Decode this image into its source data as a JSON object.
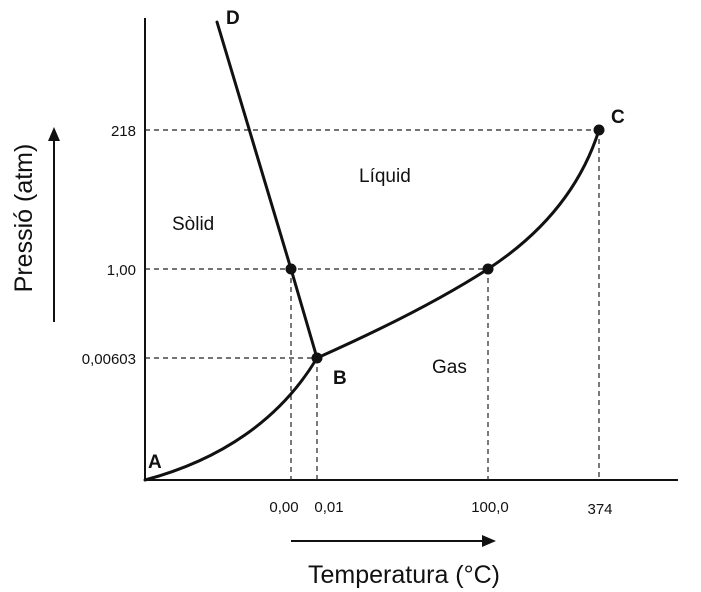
{
  "chart_data": {
    "type": "phase_diagram",
    "y_axis": {
      "label": "Pressió (atm)",
      "ticks": [
        "218",
        "1,00",
        "0,00603"
      ]
    },
    "x_axis": {
      "label": "Temperatura (°C)",
      "ticks": [
        "0,00",
        "0,01",
        "100,0",
        "374"
      ]
    },
    "points": [
      {
        "label": "A",
        "temperature": null,
        "pressure": null
      },
      {
        "label": "B",
        "temperature": "0,01",
        "pressure": "0,00603"
      },
      {
        "label": "C",
        "temperature": "374",
        "pressure": "218"
      },
      {
        "label": "D",
        "temperature": null,
        "pressure": null
      }
    ],
    "marked_points": [
      {
        "temperature": "0,00",
        "pressure": "1,00"
      },
      {
        "temperature": "100,0",
        "pressure": "1,00"
      }
    ],
    "regions": [
      "Sòlid",
      "Líquid",
      "Gas"
    ],
    "curves": [
      {
        "from": "A",
        "to": "B",
        "boundary": "sòlid-gas"
      },
      {
        "from": "B",
        "to": "C",
        "boundary": "líquid-gas"
      },
      {
        "from": "B",
        "to": "D",
        "boundary": "sòlid-líquid"
      }
    ],
    "colors": {
      "lines": "#111111",
      "background": "#ffffff"
    }
  }
}
